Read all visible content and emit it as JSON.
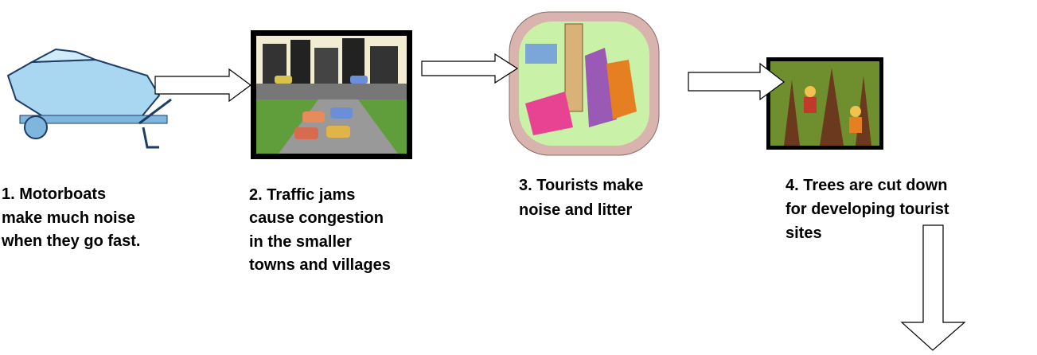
{
  "steps": [
    {
      "lines": [
        "1. Motorboats",
        "make much noise",
        "when they go fast."
      ]
    },
    {
      "lines": [
        "2. Traffic jams",
        "cause congestion",
        "in the smaller",
        "towns and villages"
      ]
    },
    {
      "lines": [
        "3. Tourists make",
        "noise and litter"
      ]
    },
    {
      "lines": [
        "4. Trees are cut down",
        "for developing tourist",
        "sites"
      ]
    }
  ]
}
